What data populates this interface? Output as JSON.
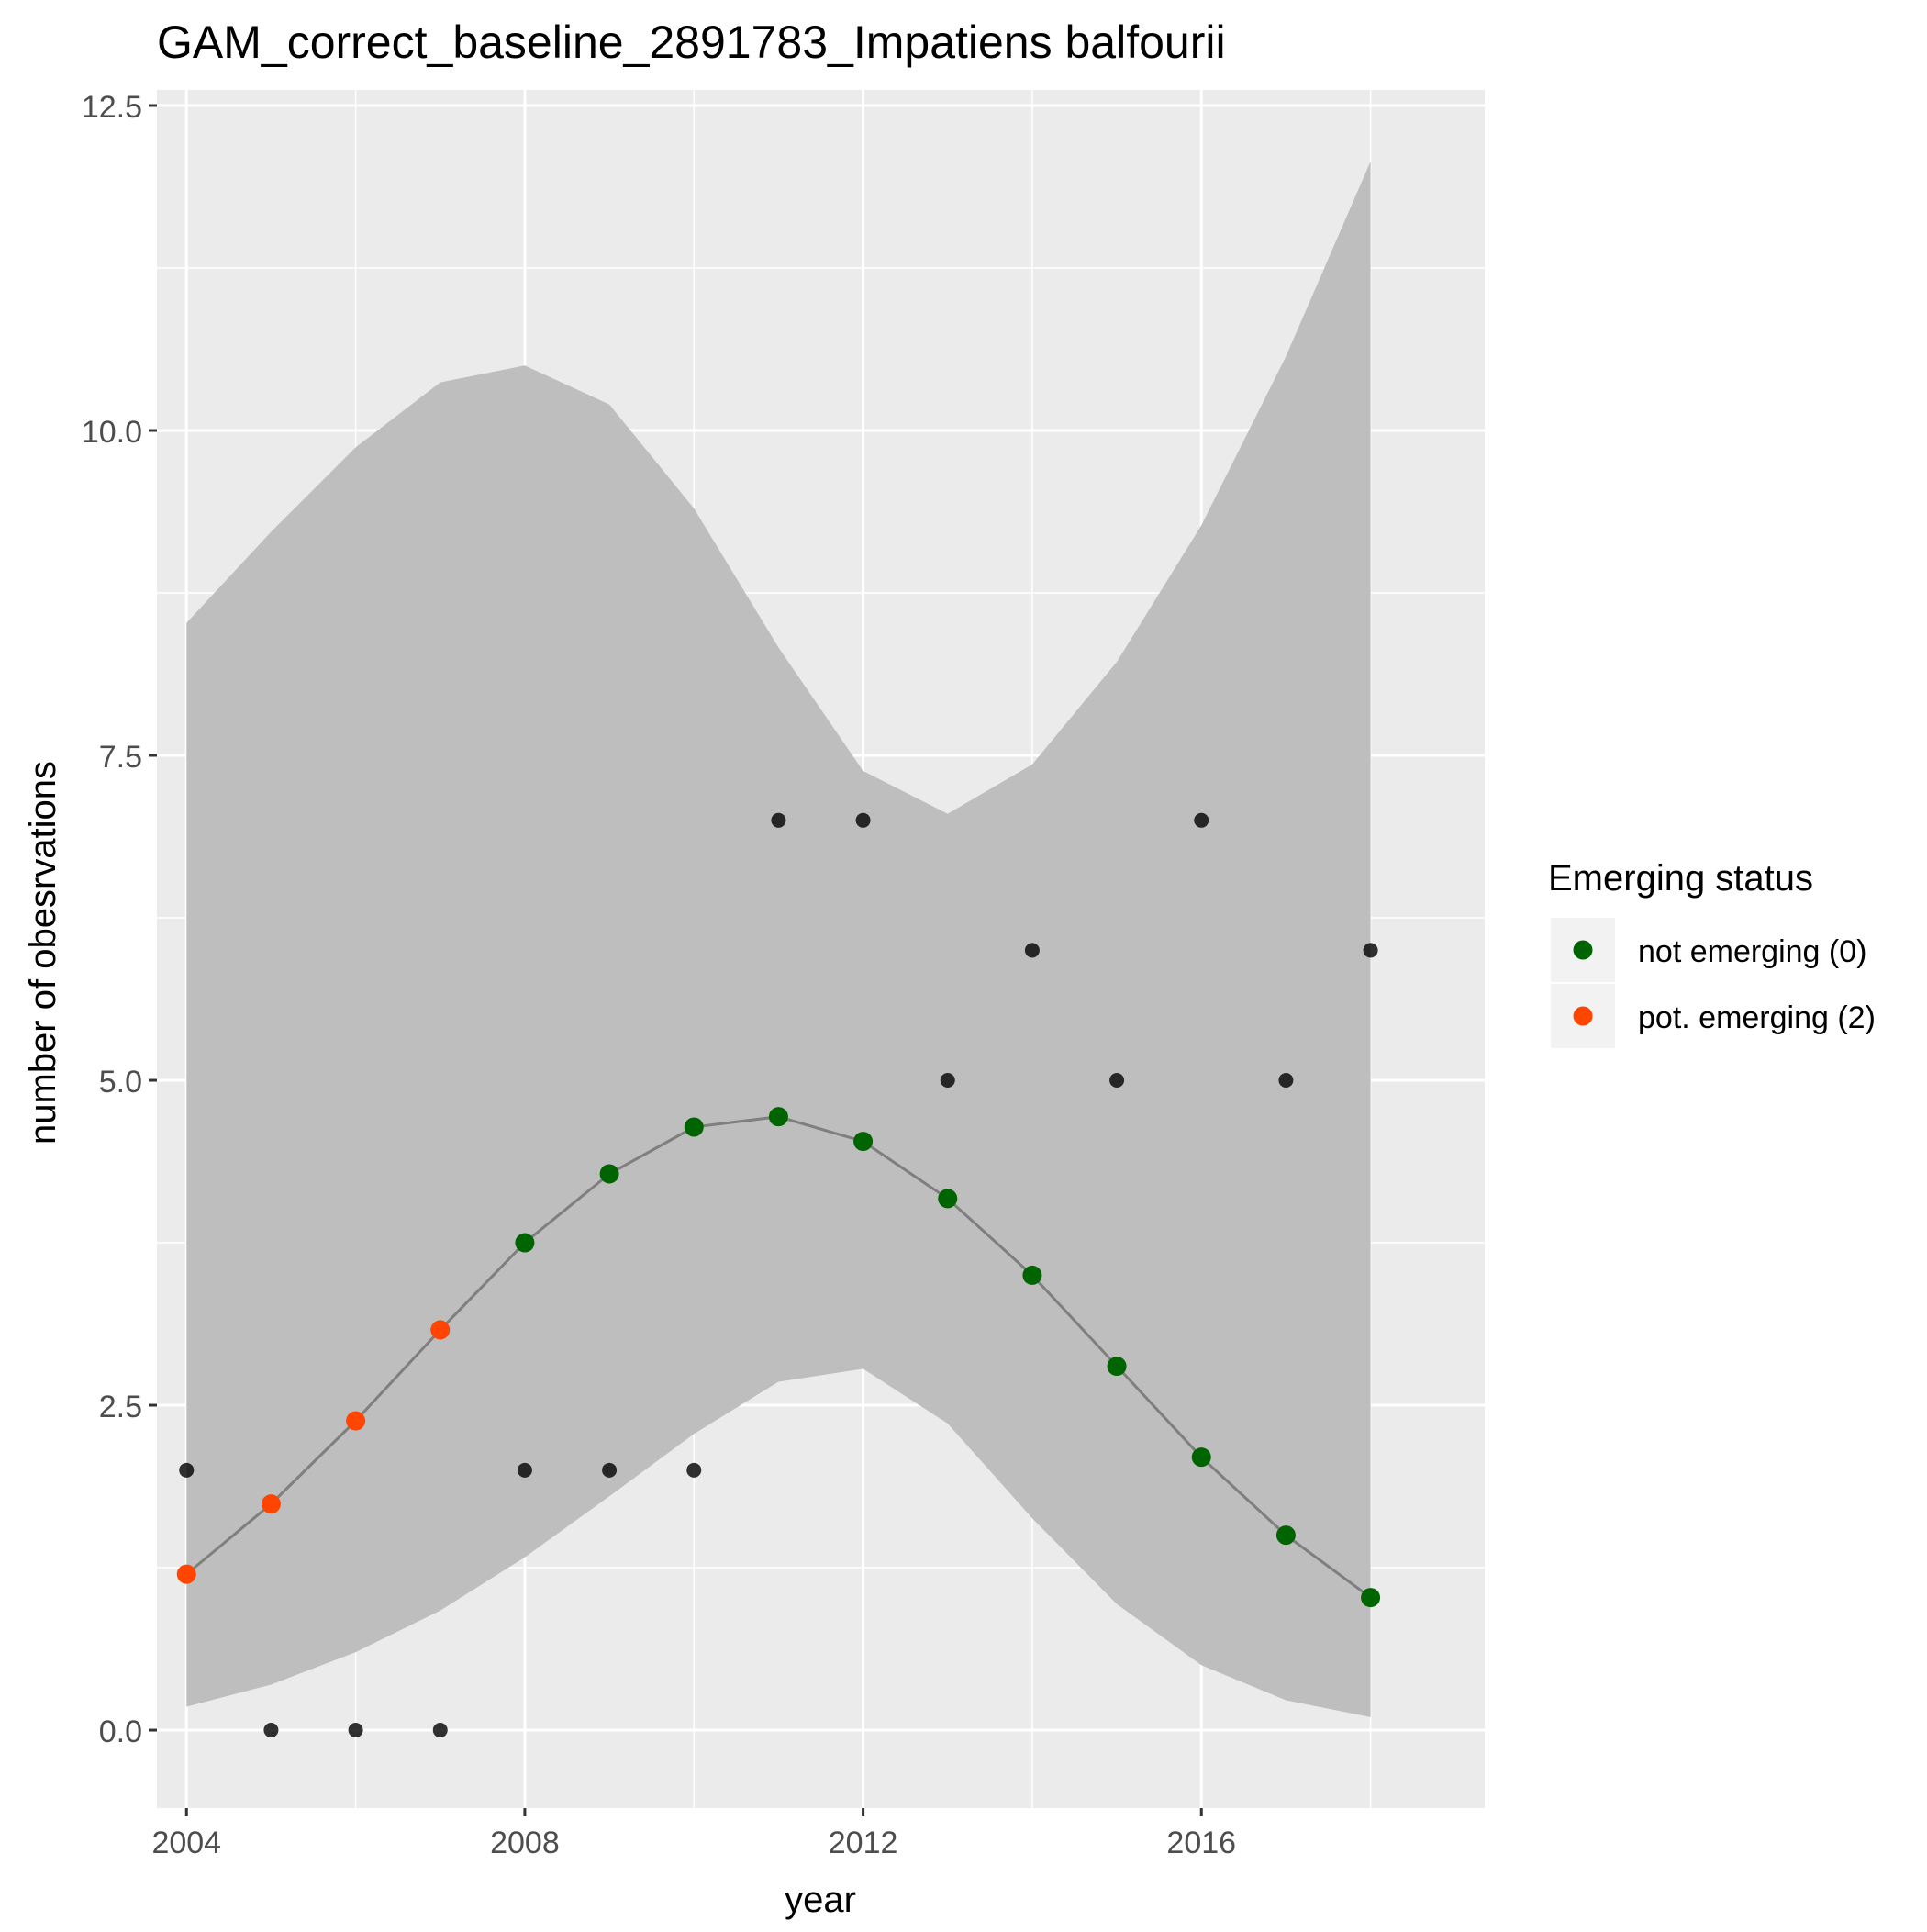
{
  "chart_data": {
    "type": "line",
    "title": "GAM_correct_baseline_2891783_Impatiens balfourii",
    "xlabel": "year",
    "ylabel": "number of obesrvations",
    "xlim": [
      2003.65,
      2019.35
    ],
    "ylim": [
      -0.6,
      12.62
    ],
    "x_ticks": [
      2004,
      2008,
      2012,
      2016
    ],
    "x_tick_labels": [
      "2004",
      "2008",
      "2012",
      "2016"
    ],
    "y_ticks": [
      0,
      2.5,
      5,
      7.5,
      10,
      12.5
    ],
    "y_tick_labels": [
      "0.0",
      "2.5",
      "5.0",
      "7.5",
      "10.0",
      "12.5"
    ],
    "grid": true,
    "legend": {
      "title": "Emerging status",
      "placement": "right",
      "entries": [
        {
          "label": "not emerging (0)",
          "color": "#006400"
        },
        {
          "label": "pot. emerging (2)",
          "color": "#FF4500"
        }
      ]
    },
    "years": [
      2004,
      2005,
      2006,
      2007,
      2008,
      2009,
      2010,
      2011,
      2012,
      2013,
      2014,
      2015,
      2016,
      2017,
      2018
    ],
    "observed": [
      2,
      0,
      0,
      0,
      2,
      2,
      2,
      7,
      7,
      5,
      6,
      5,
      7,
      5,
      6
    ],
    "fit": [
      1.2,
      1.74,
      2.38,
      3.08,
      3.75,
      4.28,
      4.64,
      4.72,
      4.53,
      4.09,
      3.5,
      2.8,
      2.1,
      1.5,
      1.02
    ],
    "status": [
      2,
      2,
      2,
      2,
      0,
      0,
      0,
      0,
      0,
      0,
      0,
      0,
      0,
      0,
      0
    ],
    "ci_lower": [
      0.18,
      0.35,
      0.6,
      0.92,
      1.33,
      1.8,
      2.28,
      2.68,
      2.78,
      2.36,
      1.63,
      0.97,
      0.5,
      0.23,
      0.1
    ],
    "ci_upper": [
      8.52,
      9.22,
      9.87,
      10.37,
      10.5,
      10.2,
      9.4,
      8.33,
      7.38,
      7.05,
      7.43,
      8.22,
      9.27,
      10.57,
      12.07
    ],
    "colors": {
      "panel": "#EBEBEB",
      "grid": "#FFFFFF",
      "ribbon": "#BEBEBE",
      "fit_line": "#7F7F7F",
      "observed": "#000000",
      "not_emerging": "#006400",
      "pot_emerging": "#FF4500",
      "legend_key": "#F2F2F2",
      "text": "#000000",
      "tick_text": "#4D4D4D",
      "tick": "#333333"
    }
  }
}
